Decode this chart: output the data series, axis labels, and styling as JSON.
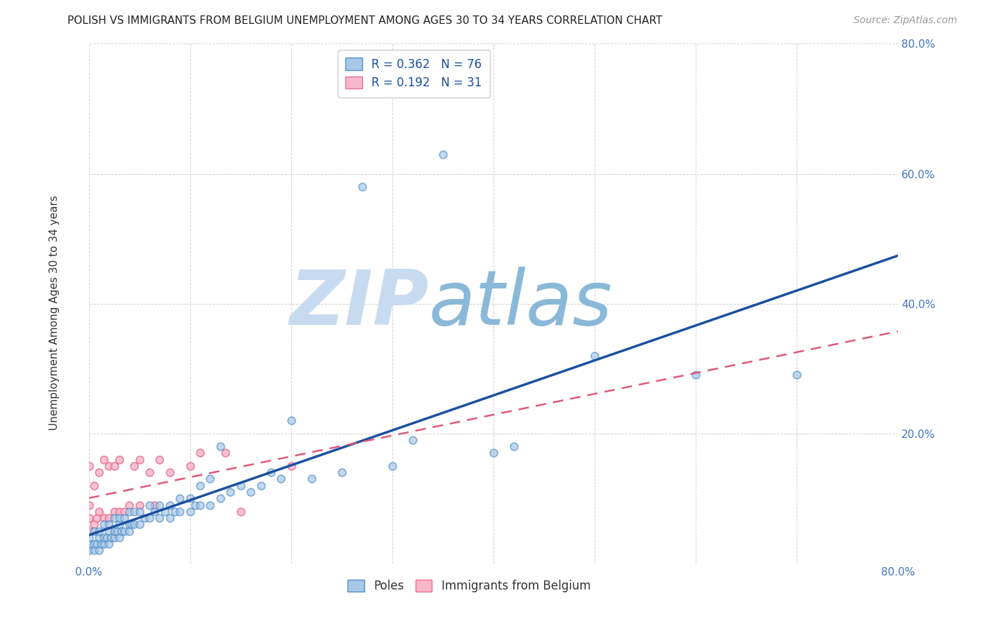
{
  "title": "POLISH VS IMMIGRANTS FROM BELGIUM UNEMPLOYMENT AMONG AGES 30 TO 34 YEARS CORRELATION CHART",
  "source": "Source: ZipAtlas.com",
  "ylabel": "Unemployment Among Ages 30 to 34 years",
  "xlim": [
    0.0,
    0.8
  ],
  "ylim": [
    0.0,
    0.8
  ],
  "xticks": [
    0.0,
    0.1,
    0.2,
    0.3,
    0.4,
    0.5,
    0.6,
    0.7,
    0.8
  ],
  "yticks": [
    0.0,
    0.2,
    0.4,
    0.6,
    0.8
  ],
  "poles_R": 0.362,
  "poles_N": 76,
  "belgium_R": 0.192,
  "belgium_N": 31,
  "poles_scatter_color": "#a8c8e8",
  "poles_edge_color": "#5590c8",
  "poles_line_color": "#1a4fa0",
  "belgium_scatter_color": "#f8b8cc",
  "belgium_edge_color": "#e87090",
  "belgium_line_color": "#e05878",
  "watermark_ZIP": "ZIP",
  "watermark_atlas": "atlas",
  "watermark_color_ZIP": "#c8daf0",
  "watermark_color_atlas": "#8ab0d8",
  "poles_x": [
    0.0,
    0.0,
    0.0,
    0.005,
    0.005,
    0.005,
    0.008,
    0.01,
    0.01,
    0.01,
    0.012,
    0.015,
    0.015,
    0.015,
    0.018,
    0.02,
    0.02,
    0.02,
    0.022,
    0.025,
    0.025,
    0.025,
    0.028,
    0.03,
    0.03,
    0.03,
    0.032,
    0.035,
    0.035,
    0.04,
    0.04,
    0.04,
    0.042,
    0.045,
    0.045,
    0.05,
    0.05,
    0.055,
    0.06,
    0.06,
    0.065,
    0.07,
    0.07,
    0.075,
    0.08,
    0.08,
    0.085,
    0.09,
    0.09,
    0.1,
    0.1,
    0.105,
    0.11,
    0.11,
    0.12,
    0.12,
    0.13,
    0.13,
    0.14,
    0.15,
    0.16,
    0.17,
    0.18,
    0.19,
    0.2,
    0.22,
    0.25,
    0.27,
    0.3,
    0.32,
    0.35,
    0.4,
    0.42,
    0.5,
    0.6,
    0.7
  ],
  "poles_y": [
    0.02,
    0.03,
    0.04,
    0.02,
    0.03,
    0.05,
    0.03,
    0.02,
    0.04,
    0.05,
    0.03,
    0.03,
    0.04,
    0.06,
    0.04,
    0.03,
    0.05,
    0.06,
    0.04,
    0.04,
    0.05,
    0.07,
    0.05,
    0.04,
    0.06,
    0.07,
    0.05,
    0.05,
    0.07,
    0.05,
    0.06,
    0.08,
    0.06,
    0.06,
    0.08,
    0.06,
    0.08,
    0.07,
    0.07,
    0.09,
    0.08,
    0.07,
    0.09,
    0.08,
    0.07,
    0.09,
    0.08,
    0.08,
    0.1,
    0.08,
    0.1,
    0.09,
    0.09,
    0.12,
    0.09,
    0.13,
    0.1,
    0.18,
    0.11,
    0.12,
    0.11,
    0.12,
    0.14,
    0.13,
    0.22,
    0.13,
    0.14,
    0.58,
    0.15,
    0.19,
    0.63,
    0.17,
    0.18,
    0.32,
    0.29,
    0.29
  ],
  "belgium_x": [
    0.0,
    0.0,
    0.0,
    0.0,
    0.005,
    0.005,
    0.008,
    0.01,
    0.01,
    0.015,
    0.015,
    0.02,
    0.02,
    0.025,
    0.025,
    0.03,
    0.03,
    0.035,
    0.04,
    0.045,
    0.05,
    0.05,
    0.06,
    0.065,
    0.07,
    0.08,
    0.1,
    0.11,
    0.135,
    0.15,
    0.2
  ],
  "belgium_y": [
    0.05,
    0.07,
    0.09,
    0.15,
    0.06,
    0.12,
    0.07,
    0.08,
    0.14,
    0.07,
    0.16,
    0.07,
    0.15,
    0.08,
    0.15,
    0.08,
    0.16,
    0.08,
    0.09,
    0.15,
    0.09,
    0.16,
    0.14,
    0.09,
    0.16,
    0.14,
    0.15,
    0.17,
    0.17,
    0.08,
    0.15
  ],
  "title_fontsize": 11,
  "axis_label_fontsize": 11,
  "tick_fontsize": 11,
  "legend_fontsize": 12,
  "source_fontsize": 10,
  "marker_size": 60,
  "marker_linewidth": 1.2
}
